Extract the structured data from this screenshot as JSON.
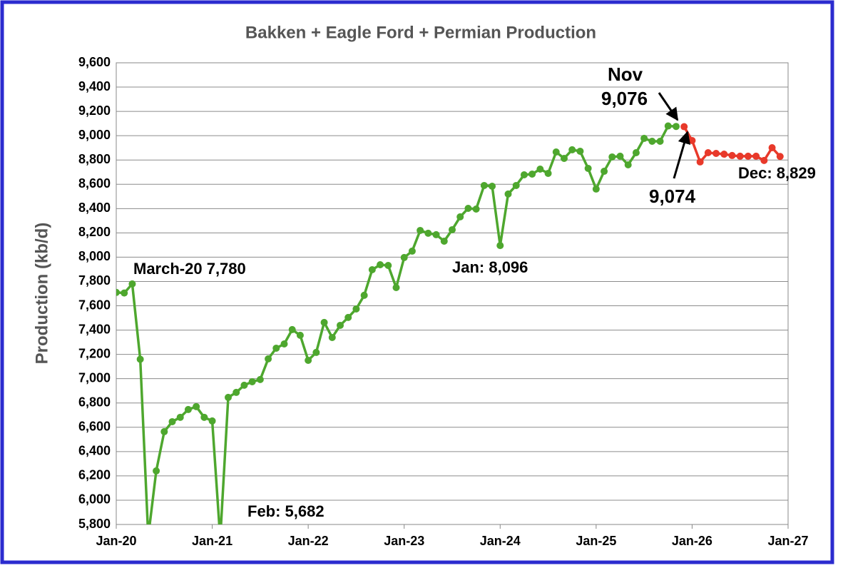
{
  "chart_data": {
    "type": "line",
    "title": "Bakken + Eagle Ford + Permian Production",
    "y_label": "Production (kb/d)",
    "x": [
      0,
      1,
      2,
      3,
      4,
      5,
      6,
      7,
      8,
      9,
      10,
      11,
      12,
      13,
      14,
      15,
      16,
      17,
      18,
      19,
      20,
      21,
      22,
      23,
      24,
      25,
      26,
      27,
      28,
      29,
      30,
      31,
      32,
      33,
      34,
      35,
      36,
      37,
      38,
      39,
      40,
      41,
      42,
      43,
      44,
      45,
      46,
      47,
      48,
      49,
      50,
      51,
      52,
      53,
      54,
      55,
      56,
      57,
      58,
      59,
      60,
      61,
      62,
      63,
      64,
      65,
      66,
      67,
      68,
      69,
      70,
      71,
      72,
      73,
      74,
      75,
      76,
      77,
      78,
      79,
      80,
      81,
      82,
      83
    ],
    "xlim": [
      0,
      84
    ],
    "xticks": [
      {
        "value": 0,
        "label": "Jan-20"
      },
      {
        "value": 12,
        "label": "Jan-21"
      },
      {
        "value": 24,
        "label": "Jan-22"
      },
      {
        "value": 36,
        "label": "Jan-23"
      },
      {
        "value": 48,
        "label": "Jan-24"
      },
      {
        "value": 60,
        "label": "Jan-25"
      },
      {
        "value": 72,
        "label": "Jan-26"
      },
      {
        "value": 84,
        "label": "Jan-27"
      }
    ],
    "ylim": [
      5800,
      9600
    ],
    "yticks": [
      {
        "value": 5800,
        "label": "5,800"
      },
      {
        "value": 6000,
        "label": "6,000"
      },
      {
        "value": 6200,
        "label": "6,200"
      },
      {
        "value": 6400,
        "label": "6,400"
      },
      {
        "value": 6600,
        "label": "6,600"
      },
      {
        "value": 6800,
        "label": "6,800"
      },
      {
        "value": 7000,
        "label": "7,000"
      },
      {
        "value": 7200,
        "label": "7,200"
      },
      {
        "value": 7400,
        "label": "7,400"
      },
      {
        "value": 7600,
        "label": "7,600"
      },
      {
        "value": 7800,
        "label": "7,800"
      },
      {
        "value": 8000,
        "label": "8,000"
      },
      {
        "value": 8200,
        "label": "8,200"
      },
      {
        "value": 8400,
        "label": "8,400"
      },
      {
        "value": 8600,
        "label": "8,600"
      },
      {
        "value": 8800,
        "label": "8,800"
      },
      {
        "value": 9000,
        "label": "9,000"
      },
      {
        "value": 9200,
        "label": "9,200"
      },
      {
        "value": 9400,
        "label": "9,400"
      },
      {
        "value": 9600,
        "label": "9,600"
      }
    ],
    "grid": true,
    "series": [
      {
        "color": "#4ea72e",
        "values": [
          7710,
          7705,
          7780,
          7160,
          5700,
          6241,
          6564,
          6646,
          6682,
          6746,
          6770,
          6682,
          6652,
          5682,
          6846,
          6887,
          6946,
          6975,
          6993,
          7163,
          7251,
          7286,
          7404,
          7357,
          7151,
          7216,
          7463,
          7339,
          7439,
          7504,
          7574,
          7686,
          7897,
          7938,
          7932,
          7750,
          7997,
          8050,
          8220,
          8197,
          8185,
          8132,
          8226,
          8332,
          8402,
          8396,
          8590,
          8584,
          8096,
          8520,
          8590,
          8678,
          8684,
          8725,
          8690,
          8866,
          8813,
          8884,
          8872,
          8731,
          8561,
          8707,
          8825,
          8831,
          8760,
          8860,
          8978,
          8954,
          8954,
          9080,
          9076,
          null,
          null,
          null,
          null,
          null,
          null,
          null,
          null,
          null,
          null,
          null,
          null,
          null
        ]
      },
      {
        "color": "#e8392a",
        "values": [
          null,
          null,
          null,
          null,
          null,
          null,
          null,
          null,
          null,
          null,
          null,
          null,
          null,
          null,
          null,
          null,
          null,
          null,
          null,
          null,
          null,
          null,
          null,
          null,
          null,
          null,
          null,
          null,
          null,
          null,
          null,
          null,
          null,
          null,
          null,
          null,
          null,
          null,
          null,
          null,
          null,
          null,
          null,
          null,
          null,
          null,
          null,
          null,
          null,
          null,
          null,
          null,
          null,
          null,
          null,
          null,
          null,
          null,
          null,
          null,
          null,
          null,
          null,
          null,
          null,
          null,
          null,
          null,
          null,
          null,
          null,
          9074,
          8960,
          8784,
          8860,
          8854,
          8848,
          8837,
          8831,
          8831,
          8831,
          8796,
          8901,
          8829
        ]
      }
    ],
    "annotations": [
      "March-20 7,780",
      "Feb: 5,682",
      "Jan: 8,096",
      "Nov",
      "9,076",
      "9,074",
      "Dec: 8,829"
    ]
  }
}
